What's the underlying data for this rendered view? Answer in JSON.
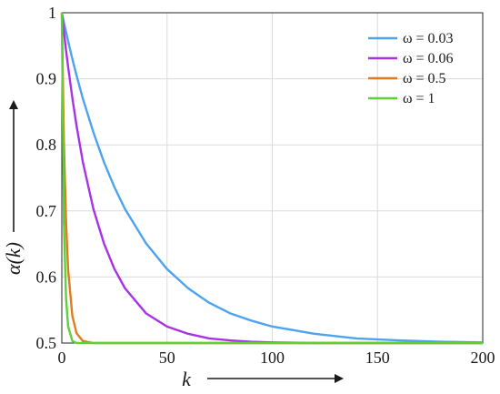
{
  "chart_data": {
    "type": "line",
    "title": "",
    "xlabel": "k",
    "ylabel": "α(k)",
    "xlim": [
      0,
      200
    ],
    "ylim": [
      0.5,
      1
    ],
    "x_ticks": [
      0,
      50,
      100,
      150,
      200
    ],
    "y_ticks": [
      0.5,
      0.6,
      0.7,
      0.8,
      0.9,
      1
    ],
    "x_tick_labels": [
      "0",
      "50",
      "100",
      "150",
      "200"
    ],
    "y_tick_labels": [
      "0.5",
      "0.6",
      "0.7",
      "0.8",
      "0.9",
      "1"
    ],
    "grid": true,
    "legend_position": "top-right",
    "x": [
      0,
      1,
      2,
      3,
      5,
      7,
      10,
      15,
      20,
      25,
      30,
      40,
      50,
      60,
      70,
      80,
      90,
      100,
      120,
      140,
      160,
      180,
      200
    ],
    "series": [
      {
        "name": "ω = 0.03",
        "color": "#4da3f0",
        "values": [
          1.0,
          0.985,
          0.971,
          0.957,
          0.93,
          0.905,
          0.87,
          0.819,
          0.774,
          0.736,
          0.703,
          0.651,
          0.612,
          0.583,
          0.561,
          0.545,
          0.534,
          0.525,
          0.514,
          0.507,
          0.504,
          0.502,
          0.501
        ]
      },
      {
        "name": "ω = 0.06",
        "color": "#a832e6",
        "values": [
          1.0,
          0.971,
          0.943,
          0.918,
          0.871,
          0.829,
          0.774,
          0.703,
          0.651,
          0.612,
          0.583,
          0.545,
          0.525,
          0.514,
          0.507,
          0.504,
          0.502,
          0.501,
          0.5,
          0.5,
          0.5,
          0.5,
          0.5
        ]
      },
      {
        "name": "ω = 0.5",
        "color": "#e07b1f",
        "values": [
          1.0,
          0.803,
          0.684,
          0.611,
          0.541,
          0.515,
          0.503,
          0.5,
          0.5,
          0.5,
          0.5,
          0.5,
          0.5,
          0.5,
          0.5,
          0.5,
          0.5,
          0.5,
          0.5,
          0.5,
          0.5,
          0.5,
          0.5
        ]
      },
      {
        "name": "ω = 1",
        "color": "#5fcf3a",
        "values": [
          1.0,
          0.684,
          0.568,
          0.525,
          0.503,
          0.5,
          0.5,
          0.5,
          0.5,
          0.5,
          0.5,
          0.5,
          0.5,
          0.5,
          0.5,
          0.5,
          0.5,
          0.5,
          0.5,
          0.5,
          0.5,
          0.5,
          0.5
        ]
      }
    ]
  }
}
